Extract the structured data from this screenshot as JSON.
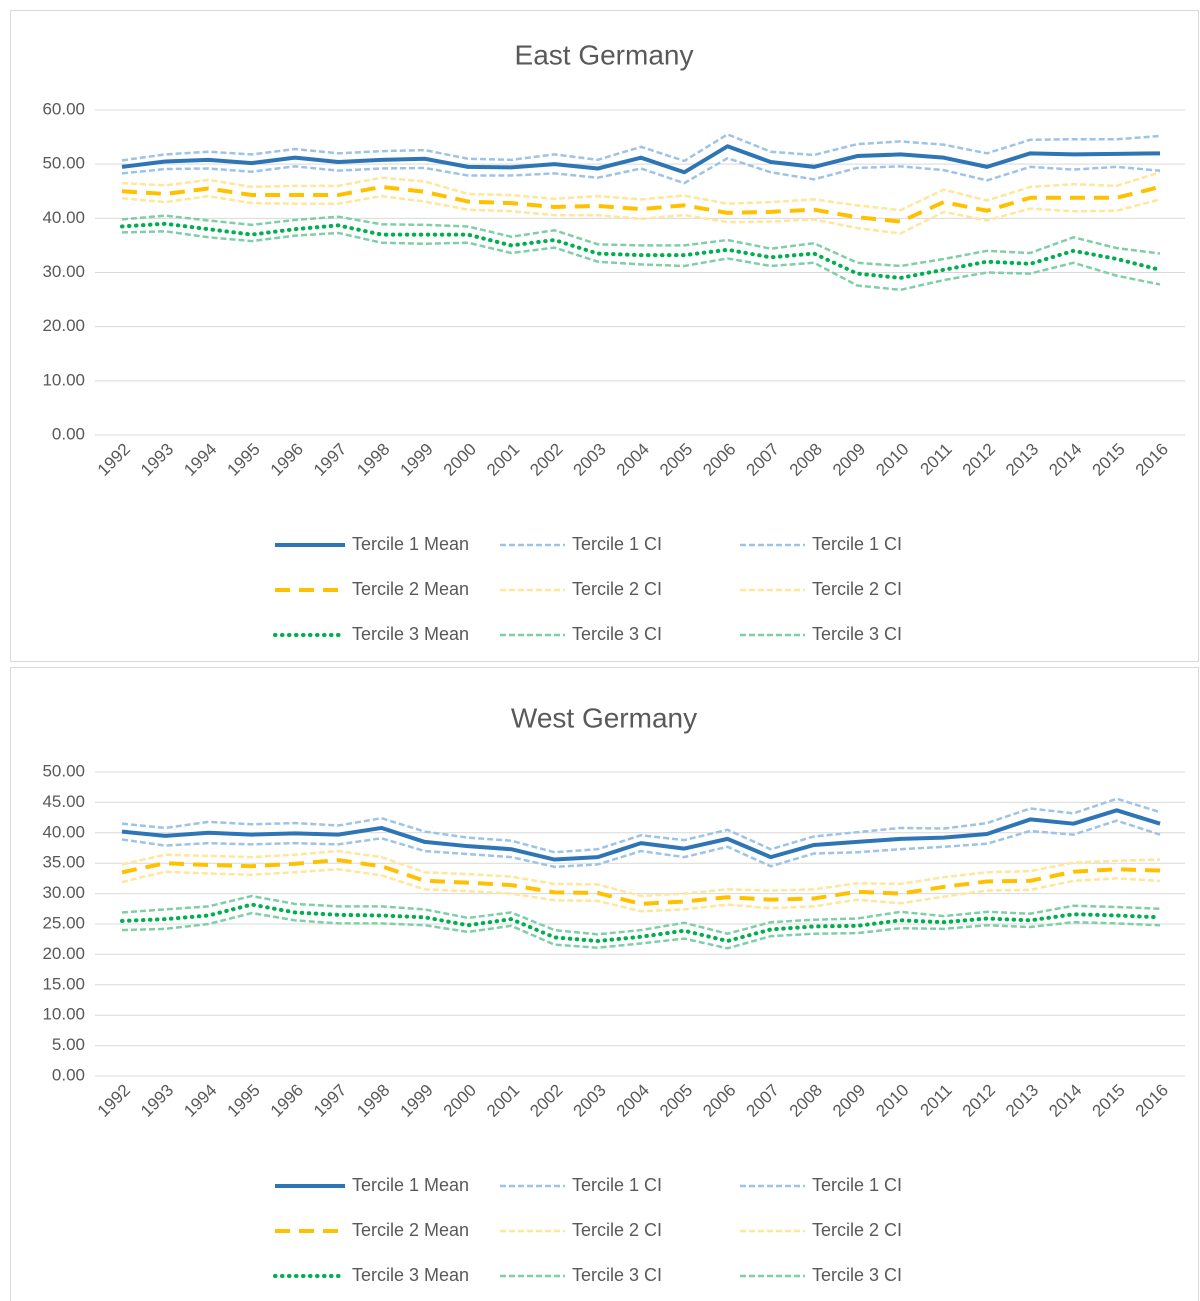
{
  "chart_data": [
    {
      "type": "line",
      "title": "East Germany",
      "categories": [
        "1992",
        "1993",
        "1994",
        "1995",
        "1996",
        "1997",
        "1998",
        "1999",
        "2000",
        "2001",
        "2002",
        "2003",
        "2004",
        "2005",
        "2006",
        "2007",
        "2008",
        "2009",
        "2010",
        "2011",
        "2012",
        "2013",
        "2014",
        "2015",
        "2016"
      ],
      "ylim": [
        0,
        60
      ],
      "yticks": [
        {
          "value": 0,
          "label": "0.00"
        },
        {
          "value": 10,
          "label": "10.00"
        },
        {
          "value": 20,
          "label": "20.00"
        },
        {
          "value": 30,
          "label": "30.00"
        },
        {
          "value": 40,
          "label": "40.00"
        },
        {
          "value": 50,
          "label": "50.00"
        },
        {
          "value": 60,
          "label": "60.00"
        }
      ],
      "grid": true,
      "legend": "bottom",
      "series": [
        {
          "name": "Tercile 1 Mean",
          "color": "#2e75b6",
          "line_style": "solid",
          "values": [
            49.5,
            50.5,
            50.8,
            50.2,
            51.2,
            50.4,
            50.8,
            51.0,
            49.5,
            49.4,
            50.0,
            49.2,
            51.2,
            48.5,
            53.3,
            50.4,
            49.5,
            51.5,
            51.8,
            51.2,
            49.5,
            52.0,
            51.8,
            51.9,
            52.0
          ]
        },
        {
          "name": "Tercile 1 CI",
          "color": "#9dc3e6",
          "line_style": "dashed",
          "values": [
            50.7,
            51.8,
            52.3,
            51.8,
            52.8,
            52.0,
            52.4,
            52.6,
            51.0,
            50.8,
            51.8,
            50.8,
            53.2,
            50.6,
            55.5,
            52.3,
            51.7,
            53.7,
            54.2,
            53.6,
            52.0,
            54.5,
            54.6,
            54.6,
            55.2
          ]
        },
        {
          "name": "Tercile 1 CI",
          "color": "#9dc3e6",
          "line_style": "dashed",
          "values": [
            48.3,
            49.1,
            49.2,
            48.6,
            49.6,
            48.8,
            49.2,
            49.3,
            47.9,
            47.9,
            48.3,
            47.5,
            49.2,
            46.5,
            51.1,
            48.5,
            47.2,
            49.3,
            49.6,
            48.9,
            47.0,
            49.5,
            49.0,
            49.5,
            48.8
          ]
        },
        {
          "name": "Tercile 2 Mean",
          "color": "#ffc000",
          "line_style": "longdash",
          "values": [
            45.0,
            44.5,
            45.5,
            44.3,
            44.3,
            44.3,
            45.8,
            44.9,
            43.1,
            42.8,
            42.1,
            42.3,
            41.7,
            42.4,
            41.0,
            41.2,
            41.6,
            40.2,
            39.4,
            43.0,
            41.4,
            43.8,
            43.8,
            43.8,
            45.8
          ]
        },
        {
          "name": "Tercile 2 CI",
          "color": "#ffe699",
          "line_style": "dashed",
          "values": [
            46.5,
            46.1,
            47.1,
            45.8,
            46.0,
            46.0,
            47.5,
            46.8,
            44.5,
            44.3,
            43.6,
            44.1,
            43.5,
            44.2,
            42.7,
            43.0,
            43.5,
            42.4,
            41.5,
            45.3,
            43.3,
            45.8,
            46.3,
            46.0,
            48.5
          ]
        },
        {
          "name": "Tercile 2 CI",
          "color": "#ffe699",
          "line_style": "dashed",
          "values": [
            43.7,
            43.0,
            44.1,
            42.8,
            42.7,
            42.7,
            44.1,
            43.1,
            41.6,
            41.3,
            40.6,
            40.6,
            39.9,
            40.6,
            39.3,
            39.4,
            39.8,
            38.2,
            37.2,
            41.2,
            39.6,
            41.8,
            41.3,
            41.4,
            43.5
          ]
        },
        {
          "name": "Tercile 3 Mean",
          "color": "#00b050",
          "line_style": "dotted",
          "values": [
            38.5,
            39.0,
            38.0,
            37.0,
            38.0,
            38.7,
            37.0,
            37.0,
            37.0,
            35.0,
            36.0,
            33.5,
            33.2,
            33.2,
            34.2,
            32.8,
            33.5,
            29.8,
            29.0,
            30.5,
            32.0,
            31.6,
            34.0,
            32.5,
            30.5
          ]
        },
        {
          "name": "Tercile 3 CI",
          "color": "#7fcfa6",
          "line_style": "dashed",
          "values": [
            39.8,
            40.5,
            39.6,
            38.8,
            39.7,
            40.3,
            38.9,
            38.8,
            38.5,
            36.6,
            37.8,
            35.2,
            35.0,
            35.0,
            36.0,
            34.4,
            35.4,
            31.8,
            31.2,
            32.5,
            34.0,
            33.6,
            36.5,
            34.5,
            33.5
          ]
        },
        {
          "name": "Tercile 3 CI",
          "color": "#7fcfa6",
          "line_style": "dashed",
          "values": [
            37.4,
            37.6,
            36.5,
            35.8,
            36.8,
            37.3,
            35.5,
            35.3,
            35.5,
            33.6,
            34.6,
            32.0,
            31.5,
            31.2,
            32.6,
            31.2,
            31.8,
            27.6,
            26.8,
            28.6,
            30.0,
            29.8,
            31.8,
            29.4,
            27.8
          ]
        }
      ]
    },
    {
      "type": "line",
      "title": "West Germany",
      "categories": [
        "1992",
        "1993",
        "1994",
        "1995",
        "1996",
        "1997",
        "1998",
        "1999",
        "2000",
        "2001",
        "2002",
        "2003",
        "2004",
        "2005",
        "2006",
        "2007",
        "2008",
        "2009",
        "2010",
        "2011",
        "2012",
        "2013",
        "2014",
        "2015",
        "2016"
      ],
      "ylim": [
        0,
        50
      ],
      "yticks": [
        {
          "value": 0,
          "label": "0.00"
        },
        {
          "value": 5,
          "label": "5.00"
        },
        {
          "value": 10,
          "label": "10.00"
        },
        {
          "value": 15,
          "label": "15.00"
        },
        {
          "value": 20,
          "label": "20.00"
        },
        {
          "value": 25,
          "label": "25.00"
        },
        {
          "value": 30,
          "label": "30.00"
        },
        {
          "value": 35,
          "label": "35.00"
        },
        {
          "value": 40,
          "label": "40.00"
        },
        {
          "value": 45,
          "label": "45.00"
        },
        {
          "value": 50,
          "label": "50.00"
        }
      ],
      "grid": true,
      "legend": "bottom",
      "series": [
        {
          "name": "Tercile 1 Mean",
          "color": "#2e75b6",
          "line_style": "solid",
          "values": [
            40.2,
            39.5,
            40.0,
            39.7,
            39.9,
            39.7,
            40.8,
            38.5,
            37.8,
            37.3,
            35.6,
            36.0,
            38.3,
            37.4,
            39.0,
            36.0,
            38.0,
            38.5,
            39.0,
            39.2,
            39.8,
            42.2,
            41.5,
            43.7,
            41.5
          ]
        },
        {
          "name": "Tercile 1 CI",
          "color": "#9dc3e6",
          "line_style": "dashed",
          "values": [
            41.5,
            40.8,
            41.8,
            41.4,
            41.6,
            41.2,
            42.4,
            40.2,
            39.2,
            38.7,
            36.8,
            37.3,
            39.6,
            38.8,
            40.5,
            37.3,
            39.4,
            40.1,
            40.8,
            40.7,
            41.6,
            44.0,
            43.2,
            45.6,
            43.4
          ]
        },
        {
          "name": "Tercile 1 CI",
          "color": "#9dc3e6",
          "line_style": "dashed",
          "values": [
            38.9,
            37.9,
            38.3,
            38.1,
            38.3,
            38.1,
            39.1,
            37.0,
            36.5,
            36.0,
            34.4,
            34.8,
            37.0,
            36.0,
            37.7,
            34.5,
            36.6,
            36.8,
            37.3,
            37.7,
            38.2,
            40.3,
            39.7,
            42.0,
            39.7
          ]
        },
        {
          "name": "Tercile 2 Mean",
          "color": "#ffc000",
          "line_style": "longdash",
          "values": [
            33.5,
            35.0,
            34.7,
            34.5,
            34.9,
            35.5,
            34.5,
            32.1,
            31.8,
            31.4,
            30.2,
            30.1,
            28.3,
            28.7,
            29.4,
            29.0,
            29.2,
            30.3,
            30.0,
            31.1,
            32.0,
            32.1,
            33.6,
            34.0,
            33.8
          ]
        },
        {
          "name": "Tercile 2 CI",
          "color": "#ffe699",
          "line_style": "dashed",
          "values": [
            34.8,
            36.4,
            36.2,
            36.0,
            36.4,
            37.0,
            36.0,
            33.5,
            33.2,
            32.8,
            31.6,
            31.5,
            29.6,
            30.0,
            30.7,
            30.5,
            30.7,
            31.7,
            31.6,
            32.7,
            33.5,
            33.7,
            35.1,
            35.4,
            35.6
          ]
        },
        {
          "name": "Tercile 2 CI",
          "color": "#ffe699",
          "line_style": "dashed",
          "values": [
            31.9,
            33.6,
            33.3,
            33.1,
            33.5,
            34.0,
            33.0,
            30.7,
            30.4,
            30.0,
            28.9,
            28.8,
            27.1,
            27.4,
            28.2,
            27.6,
            27.9,
            29.0,
            28.4,
            29.5,
            30.5,
            30.6,
            32.1,
            32.5,
            32.1
          ]
        },
        {
          "name": "Tercile 3 Mean",
          "color": "#00b050",
          "line_style": "dotted",
          "values": [
            25.5,
            25.8,
            26.4,
            28.2,
            26.9,
            26.5,
            26.4,
            26.1,
            24.8,
            25.8,
            22.8,
            22.2,
            22.9,
            23.9,
            22.2,
            24.1,
            24.6,
            24.7,
            25.6,
            25.3,
            25.9,
            25.6,
            26.6,
            26.4,
            26.1
          ]
        },
        {
          "name": "Tercile 3 CI",
          "color": "#7fcfa6",
          "line_style": "dashed",
          "values": [
            26.9,
            27.4,
            27.9,
            29.6,
            28.3,
            27.9,
            27.9,
            27.4,
            26.0,
            26.9,
            24.0,
            23.3,
            24.0,
            25.2,
            23.4,
            25.3,
            25.7,
            25.9,
            27.0,
            26.3,
            27.0,
            26.7,
            28.0,
            27.8,
            27.5
          ]
        },
        {
          "name": "Tercile 3 CI",
          "color": "#7fcfa6",
          "line_style": "dashed",
          "values": [
            24.0,
            24.2,
            25.0,
            26.8,
            25.6,
            25.1,
            25.1,
            24.8,
            23.7,
            24.7,
            21.6,
            21.1,
            21.8,
            22.6,
            21.0,
            23.0,
            23.4,
            23.5,
            24.3,
            24.2,
            24.8,
            24.5,
            25.3,
            25.1,
            24.8
          ]
        }
      ]
    }
  ]
}
